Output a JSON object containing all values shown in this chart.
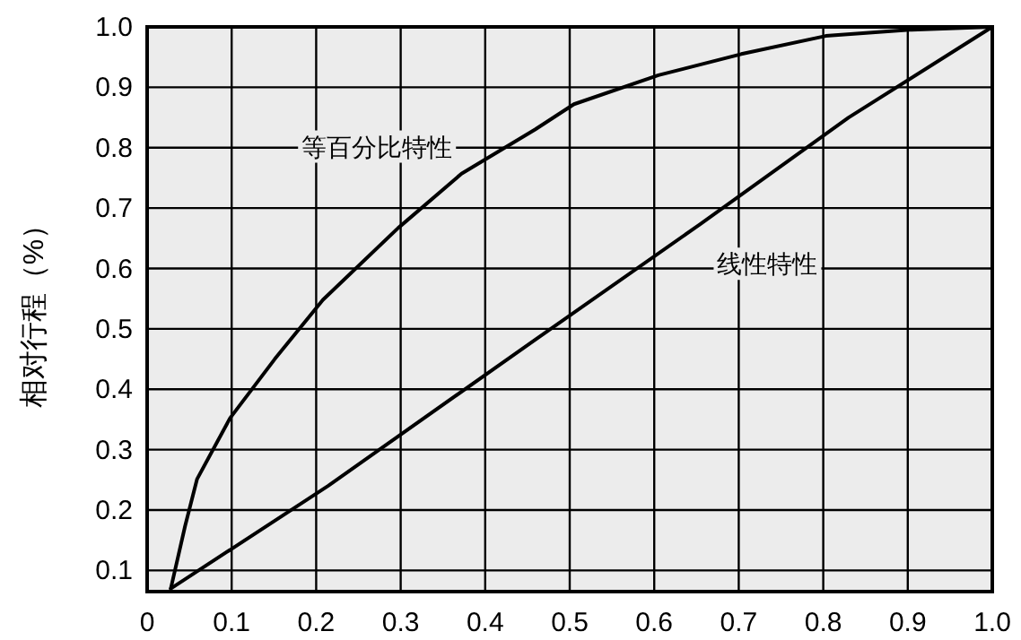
{
  "chart_data": {
    "type": "line",
    "ylabel": "相对行程（%）",
    "xlim": [
      0,
      1
    ],
    "ylim": [
      0.065,
      1.0
    ],
    "xticks": [
      0,
      0.1,
      0.2,
      0.3,
      0.4,
      0.5,
      0.6,
      0.7,
      0.8,
      0.9,
      {
        "value": 1,
        "label": "1.0"
      }
    ],
    "yticks": [
      0.1,
      0.2,
      0.3,
      0.4,
      0.5,
      0.6,
      0.7,
      0.8,
      0.9,
      {
        "value": 1,
        "label": "1.0"
      }
    ],
    "grid": true,
    "marker": "none",
    "line_style": "solid",
    "series": [
      {
        "name": "等百分比特性",
        "color": "#000000",
        "x": [
          0.028,
          0.045,
          0.059,
          0.098,
          0.151,
          0.208,
          0.297,
          0.372,
          0.459,
          0.505,
          0.605,
          0.703,
          0.803,
          0.902,
          1.0
        ],
        "values": [
          0.07,
          0.174,
          0.251,
          0.352,
          0.45,
          0.548,
          0.667,
          0.757,
          0.83,
          0.872,
          0.92,
          0.955,
          0.985,
          0.995,
          1.0
        ]
      },
      {
        "name": "线性特性",
        "color": "#000000",
        "x": [
          0.028,
          0.214,
          0.459,
          0.654,
          0.83,
          1.0
        ],
        "values": [
          0.07,
          0.24,
          0.482,
          0.673,
          0.85,
          1.0
        ]
      }
    ]
  }
}
